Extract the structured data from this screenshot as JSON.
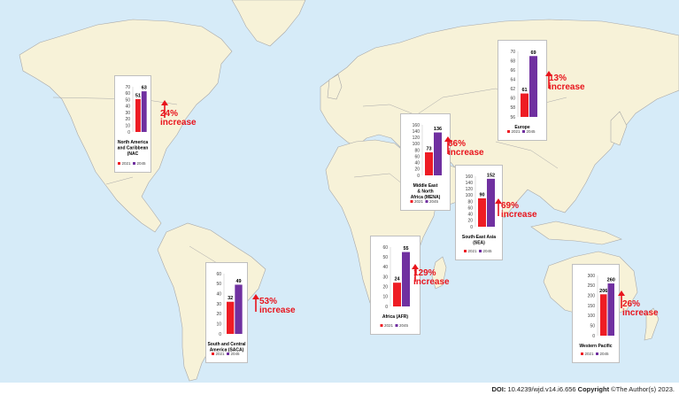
{
  "colors": {
    "ocean": "#d6ebf8",
    "land": "#f7f2d8",
    "border": "#a8a8a8",
    "bar2021": "#ee1c24",
    "bar2045": "#7030a0",
    "increase": "#e8141c"
  },
  "footer": {
    "doi_label": "DOI:",
    "doi_value": " 10.4239/wjd.v14.i6.656 ",
    "copyright_label": "Copyright",
    "copyright_text": " ©The Author(s) 2023."
  },
  "chart_data": [
    {
      "type": "bar",
      "region": "North America and Caribbean (NAC",
      "categories": [
        "2021",
        "2045"
      ],
      "values": [
        51,
        63
      ],
      "ylim": [
        0,
        70
      ],
      "yticks": [
        0,
        10,
        20,
        30,
        40,
        50,
        60,
        70
      ],
      "increase_label": "24%",
      "increase_word": "increase",
      "legend": [
        "2021",
        "2045"
      ]
    },
    {
      "type": "bar",
      "region": "Europe",
      "categories": [
        "2021",
        "2045"
      ],
      "values": [
        61,
        69
      ],
      "ylim": [
        56,
        70
      ],
      "yticks": [
        56,
        58,
        60,
        62,
        64,
        66,
        68,
        70
      ],
      "increase_label": "13%",
      "increase_word": "increase",
      "legend": [
        "2021",
        "2045"
      ]
    },
    {
      "type": "bar",
      "region": "Middle East & North Africa (MENA)",
      "categories": [
        "2021",
        "2045"
      ],
      "values": [
        73,
        136
      ],
      "ylim": [
        0,
        160
      ],
      "yticks": [
        0,
        20,
        40,
        60,
        80,
        100,
        120,
        140,
        160
      ],
      "increase_label": "86%",
      "increase_word": "increase",
      "legend": [
        "2021",
        "2045"
      ]
    },
    {
      "type": "bar",
      "region": "South-East Asia (SEA)",
      "categories": [
        "2021",
        "2045"
      ],
      "values": [
        90,
        152
      ],
      "ylim": [
        0,
        160
      ],
      "yticks": [
        0,
        20,
        40,
        60,
        80,
        100,
        120,
        140,
        160
      ],
      "increase_label": "69%",
      "increase_word": "increase",
      "legend": [
        "2021",
        "2045"
      ]
    },
    {
      "type": "bar",
      "region": "Africa (AFR)",
      "categories": [
        "2021",
        "2045"
      ],
      "values": [
        24,
        55
      ],
      "ylim": [
        0,
        60
      ],
      "yticks": [
        0,
        10,
        20,
        30,
        40,
        50,
        60
      ],
      "increase_label": "129%",
      "increase_word": "increase",
      "legend": [
        "2021",
        "2045"
      ]
    },
    {
      "type": "bar",
      "region": "South and Central America (SACA)",
      "categories": [
        "2021",
        "2045"
      ],
      "values": [
        32,
        49
      ],
      "ylim": [
        0,
        60
      ],
      "yticks": [
        0,
        10,
        20,
        30,
        40,
        50,
        60
      ],
      "increase_label": "53%",
      "increase_word": "increase",
      "legend": [
        "2021",
        "2045"
      ]
    },
    {
      "type": "bar",
      "region": "Western Pacific",
      "categories": [
        "2021",
        "2045"
      ],
      "values": [
        206,
        260
      ],
      "ylim": [
        0,
        300
      ],
      "yticks": [
        0,
        50,
        100,
        150,
        200,
        250,
        300
      ],
      "increase_label": "26%",
      "increase_word": "increase",
      "legend": [
        "2021",
        "2045"
      ]
    }
  ]
}
